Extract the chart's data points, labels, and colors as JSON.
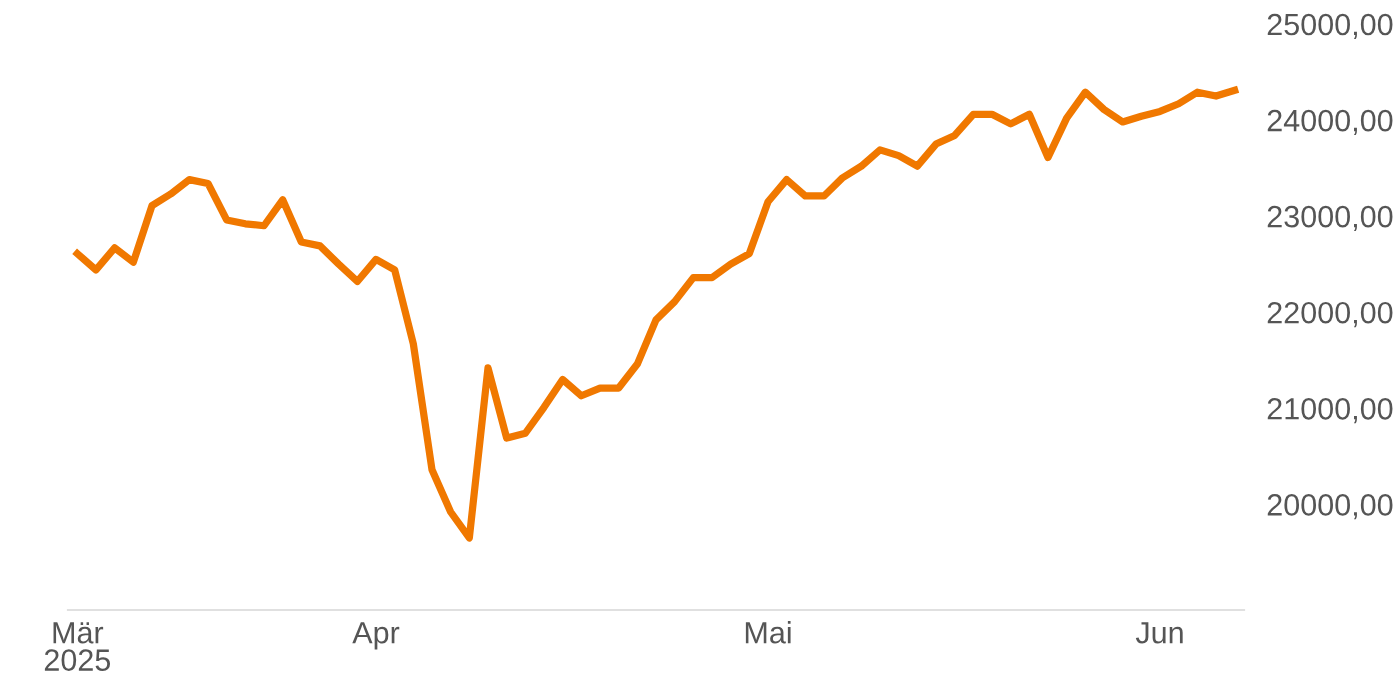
{
  "chart_data": {
    "type": "line",
    "categories": [
      "Mär\n2025",
      null,
      null,
      null,
      null,
      null,
      null,
      null,
      null,
      null,
      null,
      null,
      null,
      null,
      null,
      null,
      "Apr",
      null,
      null,
      null,
      null,
      null,
      null,
      null,
      null,
      null,
      null,
      null,
      null,
      null,
      null,
      null,
      null,
      null,
      null,
      null,
      null,
      "Mai",
      null,
      null,
      null,
      null,
      null,
      null,
      null,
      null,
      null,
      null,
      null,
      null,
      null,
      null,
      null,
      null,
      null,
      null,
      null,
      null,
      "Jun",
      null,
      null,
      null,
      null
    ],
    "series": [
      {
        "color": "#f07800",
        "values": [
          22610,
          22440,
          22670,
          22520,
          23110,
          23230,
          23380,
          23340,
          22960,
          22920,
          22900,
          23170,
          22730,
          22690,
          22500,
          22320,
          22550,
          22440,
          21670,
          20360,
          19920,
          19650,
          21420,
          20690,
          20740,
          21010,
          21300,
          21130,
          21210,
          21210,
          21460,
          21920,
          22110,
          22360,
          22360,
          22500,
          22610,
          23150,
          23380,
          23210,
          23210,
          23400,
          23520,
          23690,
          23630,
          23520,
          23750,
          23840,
          24060,
          24060,
          23960,
          24060,
          23610,
          24020,
          24290,
          24110,
          23980,
          24040,
          24090,
          24170,
          24290,
          24250,
          24310
        ]
      }
    ],
    "ylim": [
      18900,
      25000
    ],
    "yticks": [
      {
        "value": 20000,
        "label": "20000,00"
      },
      {
        "value": 21000,
        "label": "21000,00"
      },
      {
        "value": 22000,
        "label": "22000,00"
      },
      {
        "value": 23000,
        "label": "23000,00"
      },
      {
        "value": 24000,
        "label": "24000,00"
      },
      {
        "value": 25000,
        "label": "25000,00"
      }
    ],
    "grid": false,
    "legend": false,
    "marker": "none",
    "line_style": "solid"
  }
}
